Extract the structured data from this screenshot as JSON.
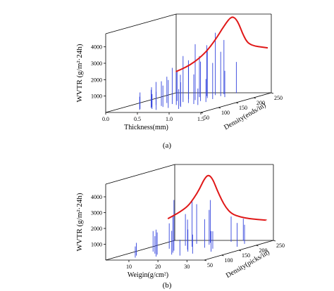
{
  "chart_data": [
    {
      "type": "3d-line-with-vertical-bars",
      "panel_label": "(a)",
      "ylabel": "WVTR (g/m²·24h)",
      "xlabel": "Thickness(mm)",
      "zlabel": "Density(ends/in)",
      "x_ticks": [
        "0.0",
        "0.5",
        "1.0",
        "1.5"
      ],
      "z_ticks": [
        "50",
        "100",
        "150",
        "200",
        "250"
      ],
      "y_ticks": [
        "1000",
        "2000",
        "3000",
        "4000"
      ],
      "xlim": [
        0.0,
        1.5
      ],
      "zlim": [
        50,
        250
      ],
      "ylim": [
        0,
        4800
      ],
      "curve": {
        "x": [
          0.05,
          0.2,
          0.35,
          0.5,
          0.6,
          0.7,
          0.78,
          0.85,
          0.9,
          0.95,
          1.0,
          1.05,
          1.1,
          1.15,
          1.2,
          1.3,
          1.4,
          1.5
        ],
        "y": [
          1350,
          1600,
          1950,
          2450,
          2900,
          3450,
          3950,
          4350,
          4600,
          4700,
          4550,
          4200,
          3700,
          3300,
          3050,
          2900,
          2850,
          2800
        ]
      },
      "bars": [
        {
          "x": 0.43,
          "z": 70,
          "y": 1100
        },
        {
          "x": 0.46,
          "z": 110,
          "y": 1500
        },
        {
          "x": 0.48,
          "z": 60,
          "y": 900
        },
        {
          "x": 0.5,
          "z": 90,
          "y": 1300
        },
        {
          "x": 0.52,
          "z": 130,
          "y": 1700
        },
        {
          "x": 0.55,
          "z": 80,
          "y": 1200
        },
        {
          "x": 0.57,
          "z": 150,
          "y": 1900
        },
        {
          "x": 0.6,
          "z": 100,
          "y": 1600
        },
        {
          "x": 0.62,
          "z": 70,
          "y": 1000
        },
        {
          "x": 0.64,
          "z": 170,
          "y": 2100
        },
        {
          "x": 0.66,
          "z": 120,
          "y": 2300
        },
        {
          "x": 0.68,
          "z": 90,
          "y": 1400
        },
        {
          "x": 0.7,
          "z": 190,
          "y": 2600
        },
        {
          "x": 0.72,
          "z": 140,
          "y": 2900
        },
        {
          "x": 0.74,
          "z": 60,
          "y": 1200
        },
        {
          "x": 0.76,
          "z": 200,
          "y": 3200
        },
        {
          "x": 0.78,
          "z": 110,
          "y": 2200
        },
        {
          "x": 0.8,
          "z": 160,
          "y": 3500
        },
        {
          "x": 0.82,
          "z": 80,
          "y": 1800
        },
        {
          "x": 0.84,
          "z": 210,
          "y": 3900
        },
        {
          "x": 0.86,
          "z": 130,
          "y": 2700
        },
        {
          "x": 0.88,
          "z": 180,
          "y": 3100
        },
        {
          "x": 0.9,
          "z": 100,
          "y": 2000
        },
        {
          "x": 0.92,
          "z": 220,
          "y": 3400
        },
        {
          "x": 0.94,
          "z": 150,
          "y": 2500
        },
        {
          "x": 0.96,
          "z": 90,
          "y": 1600
        },
        {
          "x": 0.98,
          "z": 200,
          "y": 2800
        },
        {
          "x": 1.0,
          "z": 120,
          "y": 1900
        },
        {
          "x": 1.02,
          "z": 170,
          "y": 2300
        },
        {
          "x": 1.04,
          "z": 70,
          "y": 1300
        },
        {
          "x": 1.06,
          "z": 230,
          "y": 2000
        },
        {
          "x": 1.08,
          "z": 140,
          "y": 1500
        },
        {
          "x": 1.1,
          "z": 190,
          "y": 1700
        },
        {
          "x": 1.12,
          "z": 110,
          "y": 1100
        }
      ]
    },
    {
      "type": "3d-line-with-vertical-bars",
      "panel_label": "(b)",
      "ylabel": "WVTR (g/m²·24h)",
      "xlabel": "Weigin(g/cm²)",
      "zlabel": "Density(picks/in)",
      "x_ticks": [
        "10",
        "20",
        "30"
      ],
      "z_ticks": [
        "50",
        "100",
        "150",
        "200",
        "250"
      ],
      "y_ticks": [
        "1000",
        "2000",
        "3000",
        "4000"
      ],
      "xlim": [
        2,
        36
      ],
      "zlim": [
        50,
        250
      ],
      "ylim": [
        0,
        4800
      ],
      "curve": {
        "x": [
          2,
          6,
          9,
          11,
          13,
          14.5,
          16,
          17.5,
          19,
          20.5,
          22,
          24,
          27,
          30,
          33,
          36
        ],
        "y": [
          1500,
          1900,
          2300,
          2800,
          3400,
          4000,
          4300,
          4000,
          3300,
          2700,
          2200,
          1800,
          1600,
          1500,
          1450,
          1400
        ]
      },
      "bars": [
        {
          "x": 9,
          "z": 80,
          "y": 900
        },
        {
          "x": 10,
          "z": 120,
          "y": 1400
        },
        {
          "x": 11,
          "z": 60,
          "y": 800
        },
        {
          "x": 12,
          "z": 150,
          "y": 1700
        },
        {
          "x": 13,
          "z": 100,
          "y": 1200
        },
        {
          "x": 14,
          "z": 180,
          "y": 2100
        },
        {
          "x": 15,
          "z": 90,
          "y": 1500
        },
        {
          "x": 15.5,
          "z": 200,
          "y": 2600
        },
        {
          "x": 16,
          "z": 130,
          "y": 3300
        },
        {
          "x": 17,
          "z": 70,
          "y": 1800
        },
        {
          "x": 17.5,
          "z": 170,
          "y": 3000
        },
        {
          "x": 18,
          "z": 110,
          "y": 2400
        },
        {
          "x": 19,
          "z": 210,
          "y": 2800
        },
        {
          "x": 19.5,
          "z": 140,
          "y": 2000
        },
        {
          "x": 20,
          "z": 90,
          "y": 1600
        },
        {
          "x": 21,
          "z": 190,
          "y": 2300
        },
        {
          "x": 22,
          "z": 120,
          "y": 1500
        },
        {
          "x": 23,
          "z": 160,
          "y": 1900
        },
        {
          "x": 24,
          "z": 80,
          "y": 1100
        },
        {
          "x": 25,
          "z": 220,
          "y": 1700
        },
        {
          "x": 26,
          "z": 100,
          "y": 1300
        },
        {
          "x": 27,
          "z": 150,
          "y": 1200
        },
        {
          "x": 28,
          "z": 230,
          "y": 1500
        },
        {
          "x": 30,
          "z": 120,
          "y": 1400
        },
        {
          "x": 32,
          "z": 200,
          "y": 1300
        },
        {
          "x": 33,
          "z": 170,
          "y": 1600
        }
      ]
    }
  ]
}
